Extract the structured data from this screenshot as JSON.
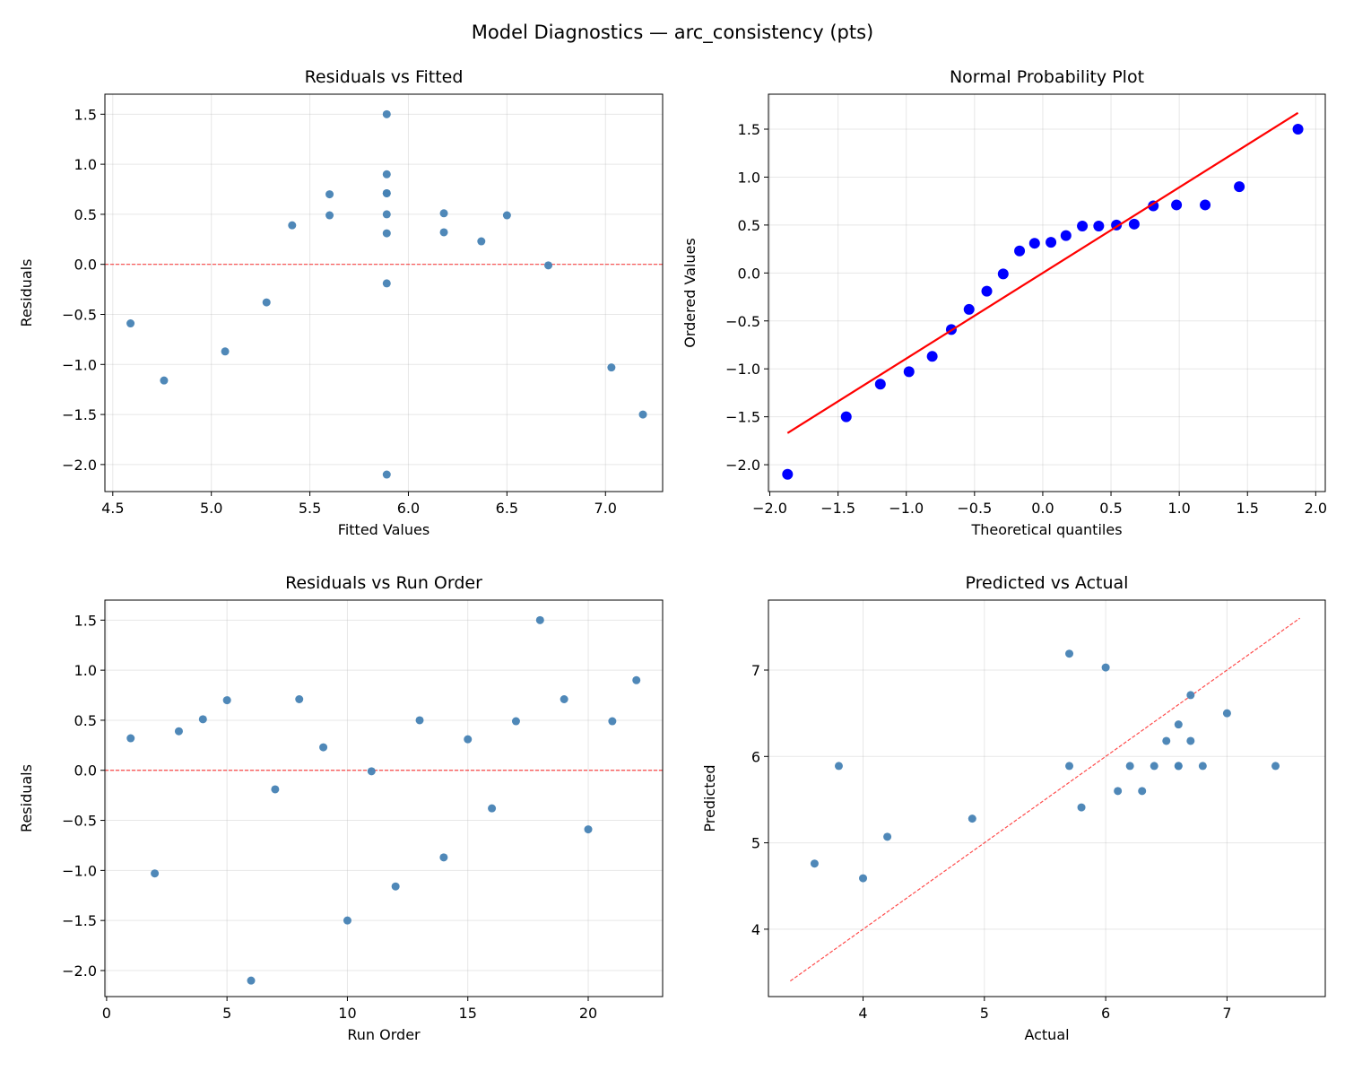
{
  "suptitle": "Model Diagnostics — arc_consistency (pts)",
  "colors": {
    "point": "#4682b4",
    "qq_point": "#0000ff",
    "qq_line": "#ff0000",
    "ref_line": "#ff0000"
  },
  "chart_data": [
    {
      "type": "scatter",
      "title": "Residuals vs Fitted",
      "xlabel": "Fitted Values",
      "ylabel": "Residuals",
      "xlim": [
        4.46,
        7.29
      ],
      "ylim": [
        -2.27,
        1.7
      ],
      "xticks": [
        "4.5",
        "5.0",
        "5.5",
        "6.0",
        "6.5",
        "7.0"
      ],
      "yticks": [
        "-2.0",
        "-1.5",
        "-1.0",
        "-0.5",
        "0.0",
        "0.5",
        "1.0",
        "1.5"
      ],
      "grid": true,
      "reference_line": {
        "type": "horizontal",
        "y": 0,
        "style": "dashed"
      },
      "x": [
        6.18,
        7.03,
        5.41,
        6.18,
        5.6,
        5.89,
        5.89,
        5.89,
        6.37,
        7.19,
        6.71,
        4.76,
        5.89,
        5.07,
        5.89,
        5.28,
        5.6,
        5.89,
        5.89,
        4.59,
        6.5,
        5.89
      ],
      "y": [
        0.32,
        -1.03,
        0.39,
        0.51,
        0.7,
        -2.1,
        -0.19,
        0.71,
        0.23,
        -1.5,
        -0.01,
        -1.16,
        0.5,
        -0.87,
        0.31,
        -0.38,
        0.49,
        1.5,
        0.71,
        -0.59,
        0.49,
        0.9
      ]
    },
    {
      "type": "scatter",
      "title": "Normal Probability Plot",
      "xlabel": "Theoretical quantiles",
      "ylabel": "Ordered Values",
      "xlim": [
        -2.01,
        2.07
      ],
      "ylim": [
        -2.28,
        1.865
      ],
      "xticks": [
        "-2.0",
        "-1.5",
        "-1.0",
        "-0.5",
        "0.0",
        "0.5",
        "1.0",
        "1.5",
        "2.0"
      ],
      "yticks": [
        "-2.0",
        "-1.5",
        "-1.0",
        "-0.5",
        "0.0",
        "0.5",
        "1.0",
        "1.5"
      ],
      "grid": true,
      "x": [
        -1.87,
        -1.44,
        -1.19,
        -0.98,
        -0.81,
        -0.67,
        -0.54,
        -0.41,
        -0.29,
        -0.17,
        -0.06,
        0.06,
        0.17,
        0.29,
        0.41,
        0.54,
        0.67,
        0.81,
        0.98,
        1.19,
        1.44,
        1.87
      ],
      "y": [
        -2.1,
        -1.5,
        -1.16,
        -1.03,
        -0.87,
        -0.59,
        -0.38,
        -0.19,
        -0.01,
        0.23,
        0.31,
        0.32,
        0.39,
        0.49,
        0.49,
        0.5,
        0.51,
        0.7,
        0.71,
        0.71,
        0.9,
        1.5
      ],
      "fit_line": {
        "slope": 0.893,
        "intercept": 0.0
      }
    },
    {
      "type": "scatter",
      "title": "Residuals vs Run Order",
      "xlabel": "Run Order",
      "ylabel": "Residuals",
      "xlim": [
        -0.07,
        23.09
      ],
      "ylim": [
        -2.26,
        1.7
      ],
      "xticks": [
        "0",
        "5",
        "10",
        "15",
        "20"
      ],
      "yticks": [
        "-2.0",
        "-1.5",
        "-1.0",
        "-0.5",
        "0.0",
        "0.5",
        "1.0",
        "1.5"
      ],
      "grid": true,
      "reference_line": {
        "type": "horizontal",
        "y": 0,
        "style": "dashed"
      },
      "x": [
        1,
        2,
        3,
        4,
        5,
        6,
        7,
        8,
        9,
        10,
        11,
        12,
        13,
        14,
        15,
        16,
        17,
        18,
        19,
        20,
        21,
        22
      ],
      "y": [
        0.32,
        -1.03,
        0.39,
        0.51,
        0.7,
        -2.1,
        -0.19,
        0.71,
        0.23,
        -1.5,
        -0.01,
        -1.16,
        0.5,
        -0.87,
        0.31,
        -0.38,
        0.49,
        1.5,
        0.71,
        -0.59,
        0.49,
        0.9
      ]
    },
    {
      "type": "scatter",
      "title": "Predicted vs Actual",
      "xlabel": "Actual",
      "ylabel": "Predicted",
      "xlim": [
        3.22,
        7.81
      ],
      "ylim": [
        3.22,
        7.81
      ],
      "xticks": [
        "4",
        "5",
        "6",
        "7"
      ],
      "yticks": [
        "4",
        "5",
        "6",
        "7"
      ],
      "grid": true,
      "reference_line": {
        "type": "diagonal",
        "from": 3.4,
        "to": 7.6,
        "style": "dashed"
      },
      "x": [
        6.5,
        6.0,
        5.8,
        6.7,
        6.3,
        3.8,
        5.7,
        6.6,
        6.6,
        5.7,
        6.7,
        3.6,
        6.4,
        4.2,
        6.2,
        4.9,
        6.1,
        7.4,
        6.6,
        4.0,
        7.0,
        6.8
      ],
      "y": [
        6.18,
        7.03,
        5.41,
        6.18,
        5.6,
        5.89,
        5.89,
        5.89,
        6.37,
        7.19,
        6.71,
        4.76,
        5.89,
        5.07,
        5.89,
        5.28,
        5.6,
        5.89,
        5.89,
        4.59,
        6.5,
        5.89
      ]
    }
  ]
}
